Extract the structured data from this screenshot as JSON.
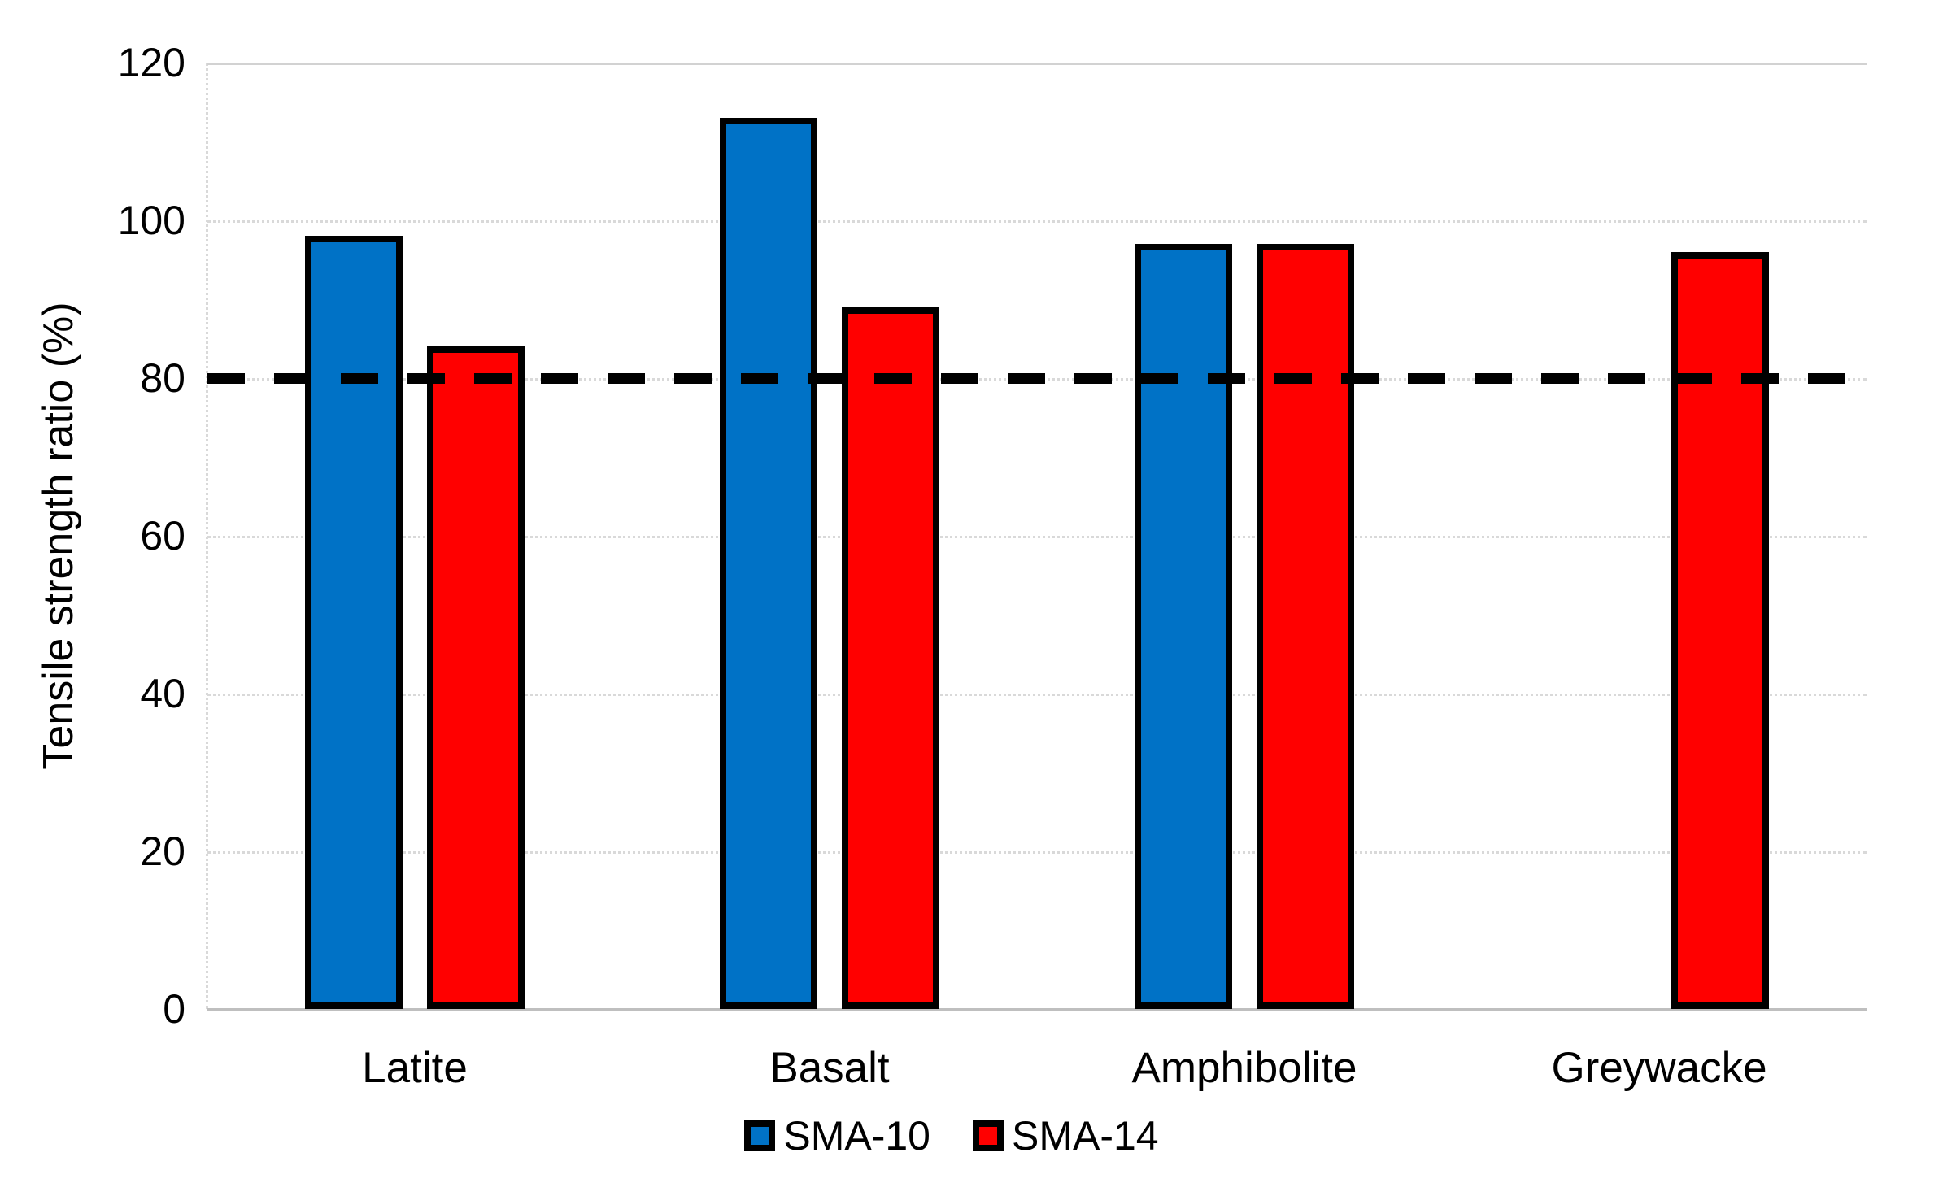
{
  "chart_data": {
    "type": "bar",
    "title": "",
    "xlabel": "",
    "ylabel": "Tensile strength ratio (%)",
    "ylim": [
      0,
      120
    ],
    "yticks": [
      0,
      20,
      40,
      60,
      80,
      100,
      120
    ],
    "categories": [
      "Latite",
      "Basalt",
      "Amphibolite",
      "Greywacke"
    ],
    "series": [
      {
        "name": "SMA-10",
        "color": "#0072C6",
        "values": [
          98,
          113,
          97,
          null
        ]
      },
      {
        "name": "SMA-14",
        "color": "#FF0000",
        "values": [
          84,
          89,
          97,
          96
        ]
      }
    ],
    "reference_line": {
      "value": 80,
      "style": "dashed",
      "color": "#000000"
    },
    "legend_position": "bottom",
    "grid": true,
    "gridline_color": "#D9D9D9",
    "axis_color": "#BFBFBF",
    "bar_border_color": "#000000"
  }
}
